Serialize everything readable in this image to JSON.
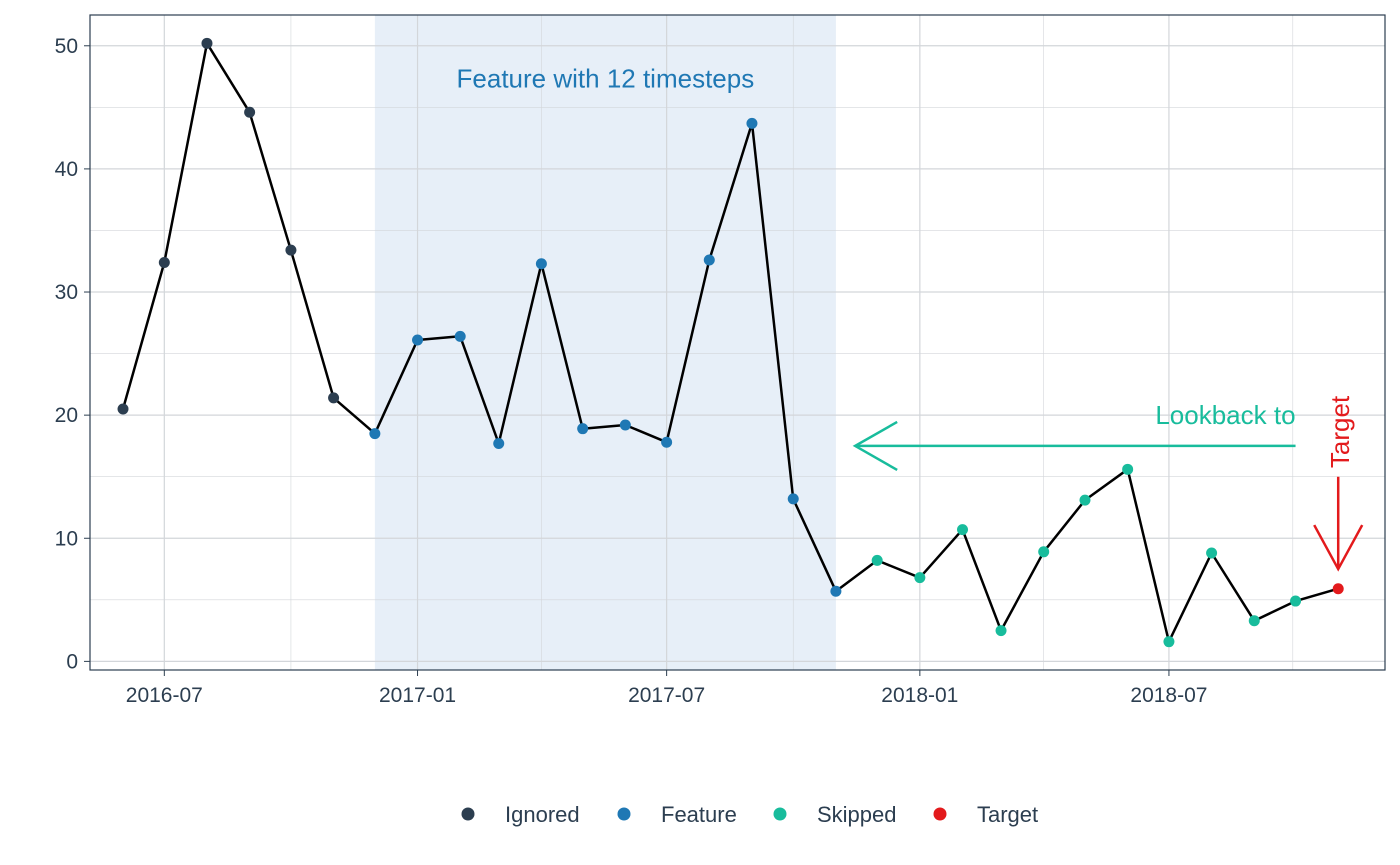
{
  "chart_data": {
    "type": "line",
    "title": "",
    "xlabel": "",
    "ylabel": "",
    "ylim": [
      -0.7,
      52.5
    ],
    "xlim": [
      "2016-05-08",
      "2018-12-05"
    ],
    "grid": true,
    "legend_placement": "bottom",
    "y_ticks": [
      0,
      10,
      20,
      30,
      40,
      50
    ],
    "x_ticks": [
      {
        "date": "2016-07-01",
        "label": "2016-07"
      },
      {
        "date": "2017-01-01",
        "label": "2017-01"
      },
      {
        "date": "2017-07-01",
        "label": "2017-07"
      },
      {
        "date": "2018-01-01",
        "label": "2018-01"
      },
      {
        "date": "2018-07-01",
        "label": "2018-07"
      }
    ],
    "series": [
      {
        "date": "2016-06-01",
        "value": 20.5,
        "group": "Ignored"
      },
      {
        "date": "2016-07-01",
        "value": 32.4,
        "group": "Ignored"
      },
      {
        "date": "2016-08-01",
        "value": 50.2,
        "group": "Ignored"
      },
      {
        "date": "2016-09-01",
        "value": 44.6,
        "group": "Ignored"
      },
      {
        "date": "2016-10-01",
        "value": 33.4,
        "group": "Ignored"
      },
      {
        "date": "2016-11-01",
        "value": 21.4,
        "group": "Ignored"
      },
      {
        "date": "2016-12-01",
        "value": 18.5,
        "group": "Feature"
      },
      {
        "date": "2017-01-01",
        "value": 26.1,
        "group": "Feature"
      },
      {
        "date": "2017-02-01",
        "value": 26.4,
        "group": "Feature"
      },
      {
        "date": "2017-03-01",
        "value": 17.7,
        "group": "Feature"
      },
      {
        "date": "2017-04-01",
        "value": 32.3,
        "group": "Feature"
      },
      {
        "date": "2017-05-01",
        "value": 18.9,
        "group": "Feature"
      },
      {
        "date": "2017-06-01",
        "value": 19.2,
        "group": "Feature"
      },
      {
        "date": "2017-07-01",
        "value": 17.8,
        "group": "Feature"
      },
      {
        "date": "2017-08-01",
        "value": 32.6,
        "group": "Feature"
      },
      {
        "date": "2017-09-01",
        "value": 43.7,
        "group": "Feature"
      },
      {
        "date": "2017-10-01",
        "value": 13.2,
        "group": "Feature"
      },
      {
        "date": "2017-11-01",
        "value": 5.7,
        "group": "Feature"
      },
      {
        "date": "2017-12-01",
        "value": 8.2,
        "group": "Skipped"
      },
      {
        "date": "2018-01-01",
        "value": 6.8,
        "group": "Skipped"
      },
      {
        "date": "2018-02-01",
        "value": 10.7,
        "group": "Skipped"
      },
      {
        "date": "2018-03-01",
        "value": 2.5,
        "group": "Skipped"
      },
      {
        "date": "2018-04-01",
        "value": 8.9,
        "group": "Skipped"
      },
      {
        "date": "2018-05-01",
        "value": 13.1,
        "group": "Skipped"
      },
      {
        "date": "2018-06-01",
        "value": 15.6,
        "group": "Skipped"
      },
      {
        "date": "2018-07-01",
        "value": 1.6,
        "group": "Skipped"
      },
      {
        "date": "2018-08-01",
        "value": 8.8,
        "group": "Skipped"
      },
      {
        "date": "2018-09-01",
        "value": 3.3,
        "group": "Skipped"
      },
      {
        "date": "2018-10-01",
        "value": 4.9,
        "group": "Skipped"
      },
      {
        "date": "2018-11-01",
        "value": 5.9,
        "group": "Target"
      }
    ],
    "groups": [
      {
        "name": "Ignored",
        "color": "#2c3e50"
      },
      {
        "name": "Feature",
        "color": "#1f78b4"
      },
      {
        "name": "Skipped",
        "color": "#18bc9c"
      },
      {
        "name": "Target",
        "color": "#e31a1c"
      }
    ],
    "feature_window": {
      "start": "2016-12-01",
      "end": "2017-11-01",
      "color": "#e7eff8"
    },
    "annotations": {
      "feature_text": "Feature with 12 timesteps",
      "lookback_text": "Lookback to",
      "target_text": "Target",
      "feature_color": "#1f78b4",
      "lookback_color": "#18bc9c",
      "target_color": "#e31a1c",
      "lookback_arrow": {
        "from_date": "2018-10-01",
        "to_date": "2017-11-15",
        "y": 17.5
      },
      "target_arrow": {
        "date": "2018-11-01",
        "from_y": 15.0,
        "to_y": 7.5
      }
    },
    "line_color": "#000000",
    "axis_color": "#2c3e50",
    "grid_color": "#d3d6da"
  }
}
